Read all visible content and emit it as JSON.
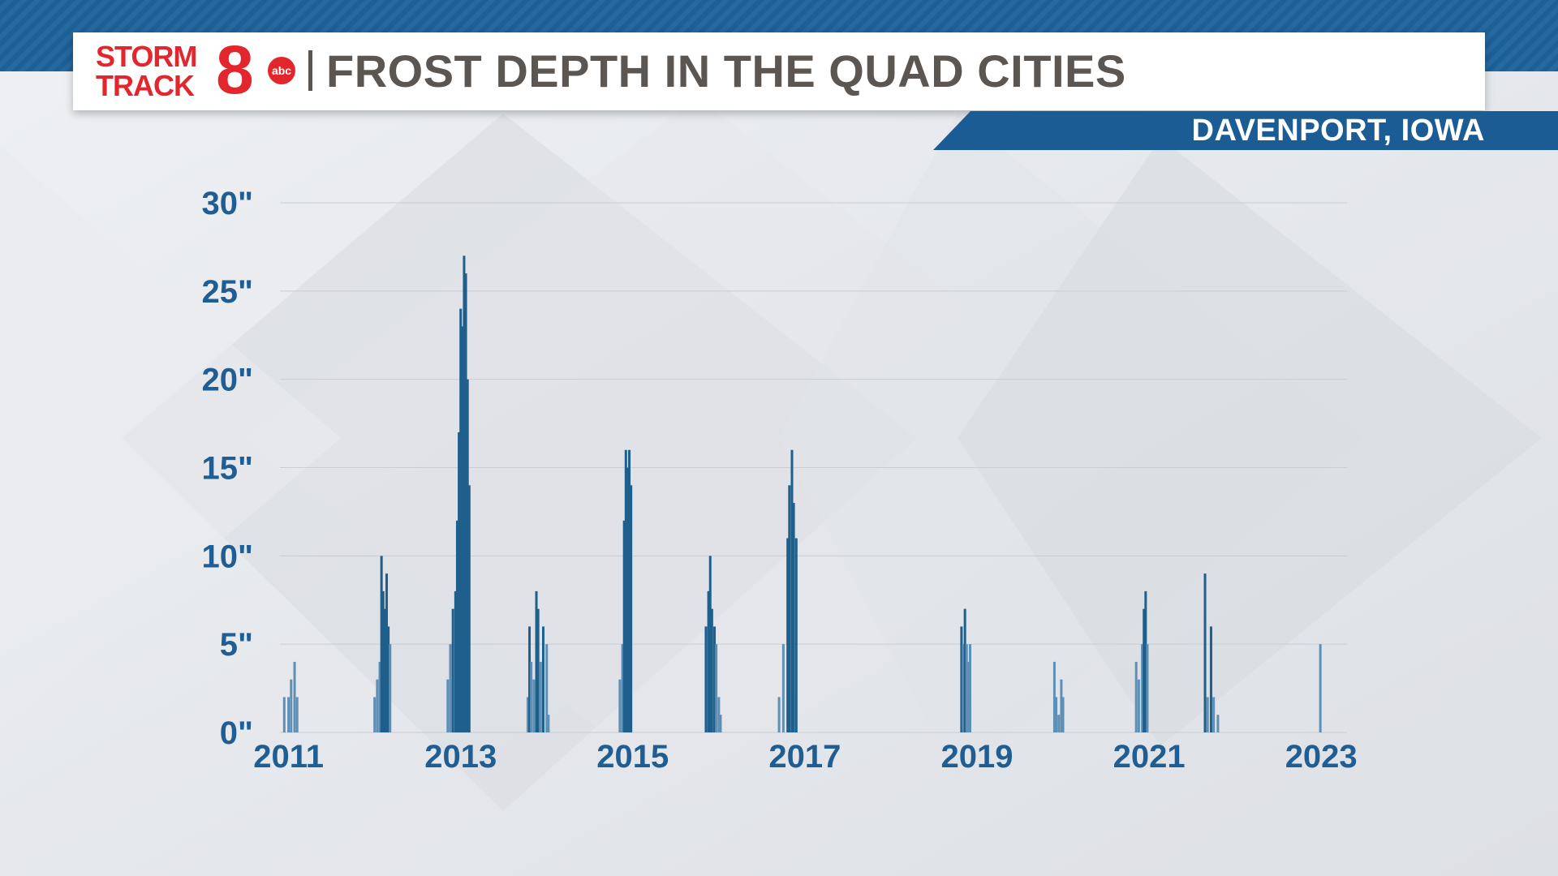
{
  "header": {
    "logo_line1": "STORM",
    "logo_line2": "TRACK",
    "logo_number": "8",
    "logo_network": "abc",
    "title": "FROST DEPTH IN THE QUAD CITIES",
    "location": "DAVENPORT, IOWA"
  },
  "colors": {
    "bar": "#1f5f8c",
    "bar_light": "#5f8fb4",
    "axis_text": "#1f5d92",
    "brand_red": "#e3262d",
    "brand_blue": "#1c5c95"
  },
  "chart_data": {
    "type": "bar",
    "title": "FROST DEPTH IN THE QUAD CITIES",
    "xlabel": "",
    "ylabel": "",
    "ylim": [
      0,
      30
    ],
    "xlim": [
      2010.9,
      2023.3
    ],
    "yticks": [
      {
        "value": 0,
        "label": "0\""
      },
      {
        "value": 5,
        "label": "5\""
      },
      {
        "value": 10,
        "label": "10\""
      },
      {
        "value": 15,
        "label": "15\""
      },
      {
        "value": 20,
        "label": "20\""
      },
      {
        "value": 25,
        "label": "25\""
      },
      {
        "value": 30,
        "label": "30\""
      }
    ],
    "xticks": [
      {
        "value": 2011.0,
        "label": "2011"
      },
      {
        "value": 2013.0,
        "label": "2013"
      },
      {
        "value": 2015.0,
        "label": "2015"
      },
      {
        "value": 2017.0,
        "label": "2017"
      },
      {
        "value": 2019.0,
        "label": "2019"
      },
      {
        "value": 2021.0,
        "label": "2021"
      },
      {
        "value": 2023.0,
        "label": "2023"
      }
    ],
    "grid": true,
    "legend": "none",
    "series": [
      {
        "points": [
          [
            2010.95,
            2
          ],
          [
            2011.0,
            2
          ],
          [
            2011.03,
            3
          ],
          [
            2011.07,
            4
          ],
          [
            2011.1,
            2
          ],
          [
            2012.0,
            2
          ],
          [
            2012.03,
            3
          ],
          [
            2012.06,
            4
          ],
          [
            2012.08,
            10
          ],
          [
            2012.1,
            8
          ],
          [
            2012.12,
            7
          ],
          [
            2012.14,
            9
          ],
          [
            2012.16,
            6
          ],
          [
            2012.18,
            5
          ],
          [
            2012.85,
            3
          ],
          [
            2012.88,
            5
          ],
          [
            2012.91,
            7
          ],
          [
            2012.94,
            8
          ],
          [
            2012.96,
            12
          ],
          [
            2012.98,
            17
          ],
          [
            2013.0,
            24
          ],
          [
            2013.02,
            23
          ],
          [
            2013.04,
            27
          ],
          [
            2013.06,
            26
          ],
          [
            2013.08,
            20
          ],
          [
            2013.1,
            14
          ],
          [
            2013.78,
            2
          ],
          [
            2013.8,
            6
          ],
          [
            2013.82,
            4
          ],
          [
            2013.85,
            3
          ],
          [
            2013.88,
            8
          ],
          [
            2013.9,
            7
          ],
          [
            2013.93,
            4
          ],
          [
            2013.96,
            6
          ],
          [
            2014.0,
            5
          ],
          [
            2014.02,
            1
          ],
          [
            2014.85,
            3
          ],
          [
            2014.88,
            5
          ],
          [
            2014.9,
            12
          ],
          [
            2014.92,
            16
          ],
          [
            2014.94,
            15
          ],
          [
            2014.96,
            16
          ],
          [
            2014.98,
            14
          ],
          [
            2015.85,
            6
          ],
          [
            2015.88,
            8
          ],
          [
            2015.9,
            10
          ],
          [
            2015.92,
            7
          ],
          [
            2015.95,
            6
          ],
          [
            2015.97,
            5
          ],
          [
            2016.0,
            2
          ],
          [
            2016.02,
            1
          ],
          [
            2016.7,
            2
          ],
          [
            2016.75,
            5
          ],
          [
            2016.8,
            11
          ],
          [
            2016.82,
            14
          ],
          [
            2016.85,
            16
          ],
          [
            2016.87,
            13
          ],
          [
            2016.9,
            11
          ],
          [
            2018.82,
            6
          ],
          [
            2018.84,
            5
          ],
          [
            2018.86,
            7
          ],
          [
            2018.88,
            5
          ],
          [
            2018.9,
            4
          ],
          [
            2018.92,
            5
          ],
          [
            2019.9,
            4
          ],
          [
            2019.92,
            2
          ],
          [
            2019.95,
            1
          ],
          [
            2019.98,
            3
          ],
          [
            2020.0,
            2
          ],
          [
            2020.85,
            4
          ],
          [
            2020.88,
            3
          ],
          [
            2020.92,
            5
          ],
          [
            2020.94,
            7
          ],
          [
            2020.96,
            8
          ],
          [
            2020.98,
            5
          ],
          [
            2021.65,
            9
          ],
          [
            2021.68,
            2
          ],
          [
            2021.72,
            6
          ],
          [
            2021.75,
            2
          ],
          [
            2021.8,
            1
          ],
          [
            2022.99,
            5
          ]
        ]
      }
    ]
  }
}
